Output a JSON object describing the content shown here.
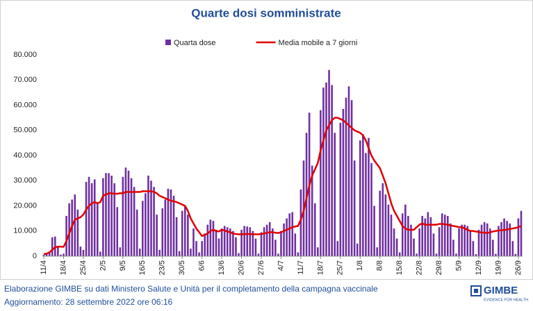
{
  "chart_data": {
    "type": "bar",
    "title": "Quarte dosi somministrate",
    "categories": [
      "11/4",
      null,
      null,
      null,
      null,
      null,
      null,
      "18/4",
      null,
      null,
      null,
      null,
      null,
      null,
      "25/4",
      null,
      null,
      null,
      null,
      null,
      null,
      "2/5",
      null,
      null,
      null,
      null,
      null,
      null,
      "9/5",
      null,
      null,
      null,
      null,
      null,
      null,
      "16/5",
      null,
      null,
      null,
      null,
      null,
      null,
      "23/5",
      null,
      null,
      null,
      null,
      null,
      null,
      "30/5",
      null,
      null,
      null,
      null,
      null,
      null,
      "6/6",
      null,
      null,
      null,
      null,
      null,
      null,
      "13/6",
      null,
      null,
      null,
      null,
      null,
      null,
      "20/6",
      null,
      null,
      null,
      null,
      null,
      null,
      "27/6",
      null,
      null,
      null,
      null,
      null,
      null,
      "4/7",
      null,
      null,
      null,
      null,
      null,
      null,
      "11/7",
      null,
      null,
      null,
      null,
      null,
      null,
      "18/7",
      null,
      null,
      null,
      null,
      null,
      null,
      "25/7",
      null,
      null,
      null,
      null,
      null,
      null,
      "1/8",
      null,
      null,
      null,
      null,
      null,
      null,
      "8/8",
      null,
      null,
      null,
      null,
      null,
      null,
      "15/8",
      null,
      null,
      null,
      null,
      null,
      null,
      "22/8",
      null,
      null,
      null,
      null,
      null,
      null,
      "29/8",
      null,
      null,
      null,
      null,
      null,
      null,
      "5/9",
      null,
      null,
      null,
      null,
      null,
      null,
      "12/9",
      null,
      null,
      null,
      null,
      null,
      null,
      "19/9",
      null,
      null,
      null,
      null,
      null,
      null,
      "26/9",
      null
    ],
    "series": [
      {
        "name": "Quarta dose",
        "type": "bar",
        "color": "#7030a0",
        "values": [
          500,
          1000,
          1500,
          7500,
          7800,
          3500,
          600,
          1000,
          16000,
          21000,
          22500,
          24500,
          18500,
          3800,
          2500,
          29500,
          31500,
          29000,
          30500,
          21000,
          1800,
          31000,
          33000,
          33000,
          32000,
          29000,
          19500,
          3500,
          31500,
          35200,
          34000,
          31000,
          27500,
          18500,
          3000,
          22000,
          25000,
          32000,
          30000,
          27500,
          16500,
          2500,
          19000,
          22500,
          26800,
          26500,
          24000,
          15500,
          2000,
          18000,
          20000,
          16500,
          3000,
          11000,
          6000,
          1500,
          6000,
          9000,
          12500,
          14500,
          14000,
          10500,
          7000,
          11000,
          12000,
          11500,
          11000,
          10000,
          7500,
          1200,
          10500,
          12000,
          11800,
          11500,
          10000,
          7000,
          1000,
          9500,
          11500,
          12500,
          13500,
          11000,
          6500,
          1000,
          10000,
          13000,
          15000,
          17000,
          17500,
          9000,
          1500,
          26500,
          38000,
          49000,
          57000,
          36000,
          21000,
          3500,
          58000,
          67000,
          69000,
          74000,
          68000,
          49000,
          6000,
          53000,
          58500,
          63000,
          67500,
          62000,
          38000,
          5000,
          46000,
          48500,
          41000,
          47000,
          37000,
          20000,
          3500,
          26000,
          29000,
          24500,
          20500,
          16500,
          11000,
          7000,
          1500,
          17000,
          20500,
          16000,
          12500,
          7000,
          1000,
          11000,
          16000,
          15000,
          17500,
          15500,
          9000,
          1000,
          11500,
          17000,
          16500,
          16000,
          13000,
          6500,
          1000,
          11000,
          12500,
          12500,
          12000,
          10000,
          6000,
          800,
          10500,
          12500,
          13500,
          13000,
          11000,
          6500,
          900,
          12000,
          13500,
          15000,
          14000,
          13000,
          6000,
          900,
          15000,
          18000
        ]
      },
      {
        "name": "Media mobile a 7 giorni",
        "type": "line",
        "color": "#e00000",
        "values": [
          800,
          1000,
          1500,
          2500,
          3500,
          3800,
          3800,
          3700,
          6000,
          9000,
          12000,
          14500,
          15000,
          15500,
          16500,
          18500,
          20000,
          21000,
          21500,
          21000,
          21500,
          24000,
          24500,
          25000,
          25000,
          24800,
          24800,
          25000,
          25000,
          25500,
          25500,
          25500,
          25500,
          25500,
          25500,
          25800,
          25800,
          25800,
          25800,
          25500,
          25000,
          24000,
          23500,
          23000,
          22500,
          22000,
          21800,
          21500,
          21000,
          20500,
          20000,
          18000,
          15000,
          13000,
          11000,
          9500,
          8000,
          8500,
          9000,
          10000,
          10500,
          10000,
          9800,
          10500,
          10200,
          9800,
          9500,
          9000,
          8800,
          8700,
          8700,
          8800,
          8800,
          8800,
          8700,
          8700,
          8700,
          8800,
          9000,
          9300,
          9500,
          9500,
          9300,
          9200,
          9500,
          10000,
          10500,
          11000,
          11500,
          11800,
          12000,
          14500,
          18000,
          23000,
          28000,
          32000,
          34500,
          37000,
          42000,
          46000,
          50000,
          52000,
          54000,
          55000,
          55000,
          54500,
          54000,
          53000,
          52000,
          51000,
          50000,
          49500,
          49000,
          48000,
          46000,
          43000,
          40000,
          38000,
          36500,
          35000,
          32000,
          29000,
          25000,
          21000,
          18000,
          16000,
          14000,
          12000,
          11000,
          10500,
          10500,
          10500,
          11500,
          12500,
          13000,
          12500,
          12500,
          12500,
          12500,
          12500,
          12800,
          12800,
          12700,
          12500,
          12200,
          12000,
          11800,
          11500,
          11500,
          11000,
          10500,
          10000,
          10000,
          9800,
          9600,
          9400,
          9300,
          9200,
          9500,
          9800,
          10000,
          10200,
          10300,
          10400,
          10600,
          10800,
          11000,
          11200,
          11500,
          12000
        ]
      }
    ],
    "ylim": [
      0,
      80000
    ],
    "yticks": [
      {
        "value": 0,
        "label": "0"
      },
      {
        "value": 10000,
        "label": "10.000"
      },
      {
        "value": 20000,
        "label": "20.000"
      },
      {
        "value": 30000,
        "label": "30.000"
      },
      {
        "value": 40000,
        "label": "40.000"
      },
      {
        "value": 50000,
        "label": "50.000"
      },
      {
        "value": 60000,
        "label": "60.000"
      },
      {
        "value": 70000,
        "label": "70.000"
      },
      {
        "value": 80000,
        "label": "80.000"
      }
    ],
    "grid": false
  },
  "footer": {
    "source": "Elaborazione GIMBE su dati Ministero Salute e Unità per il completamento della campagna vaccinale",
    "updated": "Aggiornamento: 28 settembre 2022 ore 06:16",
    "logo": "GIMBE",
    "tagline": "EVIDENCE FOR HEALTH"
  }
}
